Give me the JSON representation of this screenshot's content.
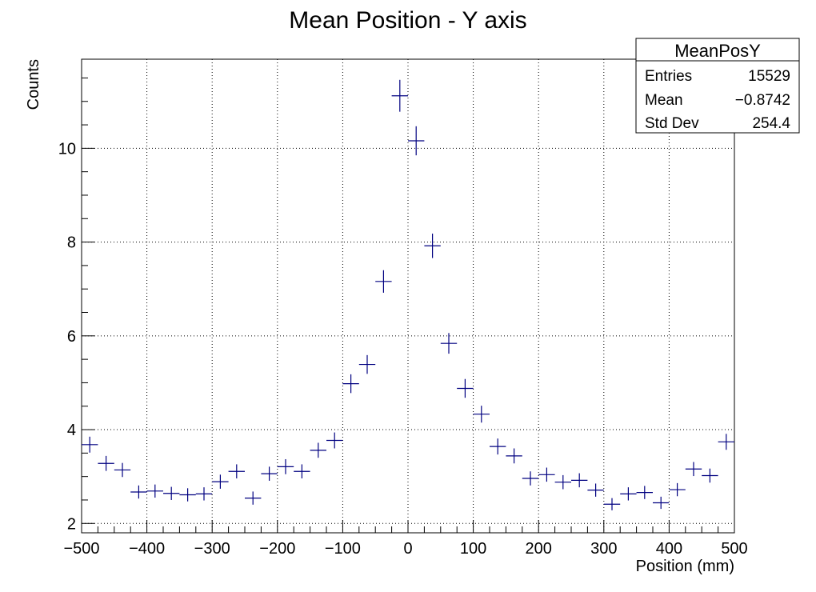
{
  "chart_data": {
    "type": "scatter",
    "title": "Mean Position - Y axis",
    "xlabel": "Position (mm)",
    "ylabel": "Counts",
    "xlim": [
      -500,
      500
    ],
    "ylim": [
      1.8,
      11.9
    ],
    "x_ticks": [
      -500,
      -400,
      -300,
      -200,
      -100,
      0,
      100,
      200,
      300,
      400,
      500
    ],
    "x_tick_labels": [
      "−500",
      "−400",
      "−300",
      "−200",
      "−100",
      "0",
      "100",
      "200",
      "300",
      "400",
      "500"
    ],
    "y_ticks": [
      2,
      4,
      6,
      8,
      10
    ],
    "y_tick_labels": [
      "2",
      "4",
      "6",
      "8",
      "10"
    ],
    "grid": true,
    "bin_width": 25,
    "series": [
      {
        "color": "#000080",
        "points": [
          {
            "x": -487.5,
            "y": 3.68,
            "err": 0.17
          },
          {
            "x": -462.5,
            "y": 3.28,
            "err": 0.16
          },
          {
            "x": -437.5,
            "y": 3.14,
            "err": 0.15
          },
          {
            "x": -412.5,
            "y": 2.67,
            "err": 0.14
          },
          {
            "x": -387.5,
            "y": 2.69,
            "err": 0.14
          },
          {
            "x": -362.5,
            "y": 2.64,
            "err": 0.14
          },
          {
            "x": -337.5,
            "y": 2.61,
            "err": 0.14
          },
          {
            "x": -312.5,
            "y": 2.63,
            "err": 0.14
          },
          {
            "x": -287.5,
            "y": 2.89,
            "err": 0.15
          },
          {
            "x": -262.5,
            "y": 3.11,
            "err": 0.15
          },
          {
            "x": -237.5,
            "y": 2.54,
            "err": 0.14
          },
          {
            "x": -212.5,
            "y": 3.06,
            "err": 0.15
          },
          {
            "x": -187.5,
            "y": 3.21,
            "err": 0.16
          },
          {
            "x": -162.5,
            "y": 3.11,
            "err": 0.15
          },
          {
            "x": -137.5,
            "y": 3.56,
            "err": 0.16
          },
          {
            "x": -112.5,
            "y": 3.77,
            "err": 0.17
          },
          {
            "x": -87.5,
            "y": 4.98,
            "err": 0.2
          },
          {
            "x": -62.5,
            "y": 5.39,
            "err": 0.2
          },
          {
            "x": -37.5,
            "y": 7.16,
            "err": 0.24
          },
          {
            "x": -12.5,
            "y": 11.12,
            "err": 0.34
          },
          {
            "x": 12.5,
            "y": 10.16,
            "err": 0.31
          },
          {
            "x": 37.5,
            "y": 7.92,
            "err": 0.26
          },
          {
            "x": 62.5,
            "y": 5.84,
            "err": 0.22
          },
          {
            "x": 87.5,
            "y": 4.88,
            "err": 0.2
          },
          {
            "x": 112.5,
            "y": 4.33,
            "err": 0.18
          },
          {
            "x": 137.5,
            "y": 3.64,
            "err": 0.17
          },
          {
            "x": 162.5,
            "y": 3.44,
            "err": 0.16
          },
          {
            "x": 187.5,
            "y": 2.96,
            "err": 0.15
          },
          {
            "x": 212.5,
            "y": 3.04,
            "err": 0.15
          },
          {
            "x": 237.5,
            "y": 2.88,
            "err": 0.15
          },
          {
            "x": 262.5,
            "y": 2.92,
            "err": 0.15
          },
          {
            "x": 287.5,
            "y": 2.71,
            "err": 0.14
          },
          {
            "x": 312.5,
            "y": 2.41,
            "err": 0.13
          },
          {
            "x": 337.5,
            "y": 2.63,
            "err": 0.14
          },
          {
            "x": 362.5,
            "y": 2.66,
            "err": 0.14
          },
          {
            "x": 387.5,
            "y": 2.44,
            "err": 0.13
          },
          {
            "x": 412.5,
            "y": 2.72,
            "err": 0.14
          },
          {
            "x": 437.5,
            "y": 3.16,
            "err": 0.15
          },
          {
            "x": 462.5,
            "y": 3.02,
            "err": 0.15
          },
          {
            "x": 487.5,
            "y": 3.74,
            "err": 0.17
          }
        ]
      }
    ],
    "stats_box": {
      "name": "MeanPosY",
      "rows": [
        {
          "label": "Entries",
          "value": "15529"
        },
        {
          "label": "Mean",
          "value": "−0.8742"
        },
        {
          "label": "Std Dev",
          "value": "254.4"
        }
      ],
      "placement": "top-right"
    }
  }
}
